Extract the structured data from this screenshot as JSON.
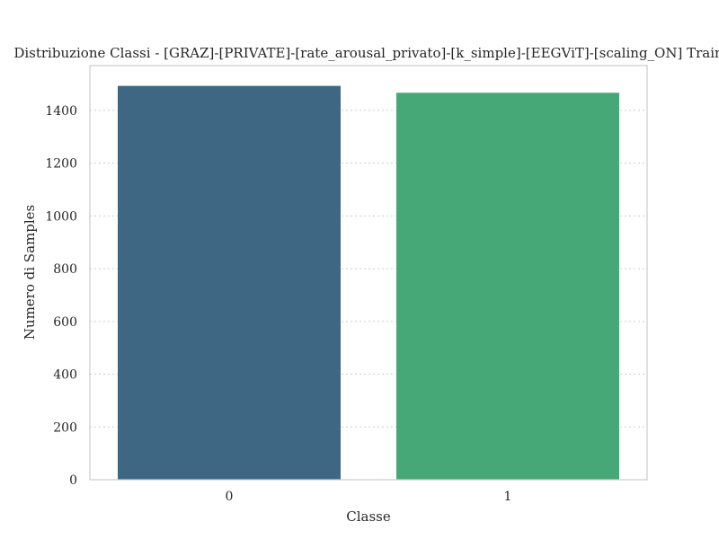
{
  "chart_data": {
    "type": "bar",
    "title": "Distribuzione Classi - [GRAZ]-[PRIVATE]-[rate_arousal_privato]-[k_simple]-[EEGViT]-[scaling_ON] Train",
    "xlabel": "Classe",
    "ylabel": "Numero di Samples",
    "categories": [
      "0",
      "1"
    ],
    "values": [
      1493,
      1467
    ],
    "colors": [
      "#3e6783",
      "#46a877"
    ],
    "ylim": [
      0,
      1570
    ],
    "yticks": [
      0,
      200,
      400,
      600,
      800,
      1000,
      1200,
      1400
    ],
    "grid": true,
    "legend": "none"
  }
}
